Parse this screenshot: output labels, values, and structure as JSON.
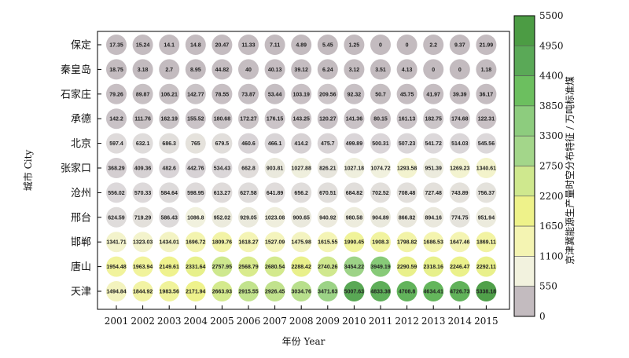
{
  "chart_data": {
    "type": "heatmap",
    "title": "",
    "xlabel": "年份 Year",
    "ylabel": "城市 City",
    "colorbar_label": "京津冀能源生产量时空分布特征 / 万吨标准煤",
    "colorbar_ticks": [
      0,
      550,
      1100,
      1650,
      2200,
      2750,
      3300,
      3850,
      4400,
      4950,
      5500
    ],
    "clim": [
      0,
      5500
    ],
    "colors": [
      "#c3bbbf",
      "#dcd8da",
      "#f2f2de",
      "#f4f4b2",
      "#eef28a",
      "#cfe88e",
      "#a3d68a",
      "#8dcc7e",
      "#6cbf5f",
      "#5aa957",
      "#4c9c44"
    ],
    "years": [
      "2001",
      "2002",
      "2003",
      "2004",
      "2005",
      "2006",
      "2007",
      "2008",
      "2009",
      "2010",
      "2011",
      "2012",
      "2013",
      "2014",
      "2015"
    ],
    "cities": [
      "保定",
      "秦皇岛",
      "石家庄",
      "承德",
      "北京",
      "张家口",
      "沧州",
      "邢台",
      "邯郸",
      "唐山",
      "天津"
    ],
    "values": [
      [
        "17.35",
        "15.24",
        "14.1",
        "14.8",
        "20.47",
        "11.33",
        "7.11",
        "4.89",
        "5.45",
        "1.25",
        "0",
        "0",
        "2.2",
        "9.37",
        "21.99"
      ],
      [
        "18.75",
        "3.18",
        "2.7",
        "8.95",
        "44.82",
        "40",
        "40.13",
        "39.12",
        "6.24",
        "3.12",
        "3.51",
        "4.13",
        "0",
        "0",
        "1.18"
      ],
      [
        "79.26",
        "89.87",
        "106.21",
        "142.77",
        "78.55",
        "73.87",
        "53.44",
        "103.19",
        "209.56",
        "92.32",
        "50.7",
        "45.75",
        "41.97",
        "39.39",
        "36.17"
      ],
      [
        "142.2",
        "111.76",
        "162.19",
        "155.52",
        "180.68",
        "172.27",
        "176.15",
        "143.25",
        "120.27",
        "141.36",
        "80.15",
        "161.13",
        "182.75",
        "174.68",
        "122.31"
      ],
      [
        "597.4",
        "632.1",
        "686.3",
        "765",
        "679.5",
        "460.6",
        "466.1",
        "414.2",
        "475.7",
        "499.89",
        "500.31",
        "507.23",
        "541.72",
        "514.03",
        "545.56"
      ],
      [
        "368.29",
        "409.36",
        "482.6",
        "442.76",
        "534.43",
        "662.8",
        "903.81",
        "1027.88",
        "826.21",
        "1027.18",
        "1074.72",
        "1293.58",
        "951.39",
        "1269.23",
        "1340.61"
      ],
      [
        "556.02",
        "570.33",
        "584.64",
        "598.95",
        "613.27",
        "627.58",
        "641.89",
        "656.2",
        "670.51",
        "684.82",
        "702.52",
        "708.48",
        "727.48",
        "743.89",
        "756.37"
      ],
      [
        "624.59",
        "719.29",
        "586.43",
        "1086.8",
        "952.02",
        "929.05",
        "1023.08",
        "900.65",
        "940.92",
        "980.58",
        "904.89",
        "866.82",
        "894.16",
        "774.75",
        "951.94"
      ],
      [
        "1341.71",
        "1323.03",
        "1434.01",
        "1696.72",
        "1809.76",
        "1618.27",
        "1527.09",
        "1475.98",
        "1615.55",
        "1990.45",
        "1908.3",
        "1798.82",
        "1686.53",
        "1647.46",
        "1869.11"
      ],
      [
        "1954.48",
        "1963.94",
        "2149.61",
        "2331.64",
        "2757.95",
        "2568.79",
        "2680.54",
        "2288.42",
        "2740.26",
        "3454.22",
        "3949.19",
        "2290.59",
        "2318.16",
        "2246.47",
        "2292.11"
      ],
      [
        "1494.84",
        "1844.92",
        "1983.56",
        "2171.94",
        "2663.93",
        "2915.55",
        "2926.45",
        "3034.76",
        "3471.63",
        "5007.63",
        "4833.38",
        "4708.8",
        "4634.41",
        "4726.73",
        "5338.18"
      ]
    ]
  }
}
